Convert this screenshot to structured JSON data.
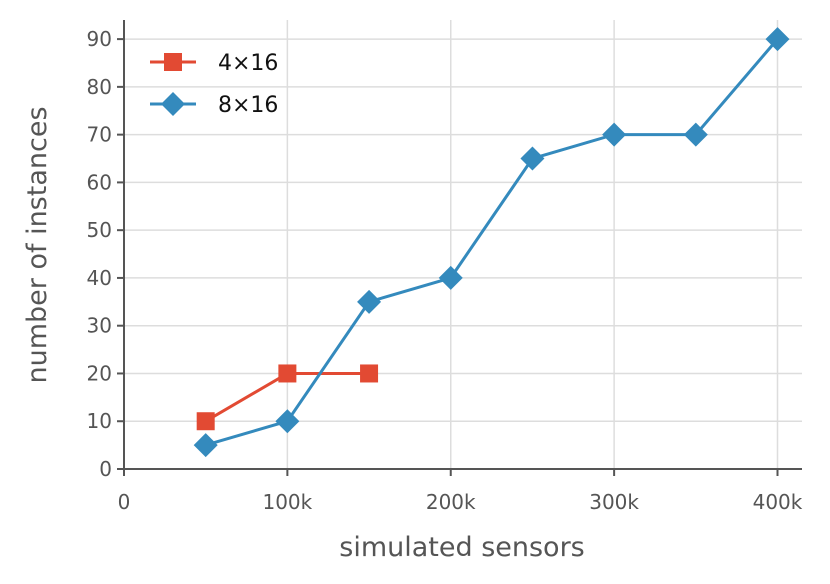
{
  "chart_data": {
    "type": "line",
    "xlabel": "simulated sensors",
    "ylabel": "number of instances",
    "xlim": [
      0,
      415000
    ],
    "ylim": [
      0,
      94
    ],
    "x_ticks": [
      {
        "value": 0,
        "label": "0"
      },
      {
        "value": 100000,
        "label": "100k"
      },
      {
        "value": 200000,
        "label": "200k"
      },
      {
        "value": 300000,
        "label": "300k"
      },
      {
        "value": 400000,
        "label": "400k"
      }
    ],
    "y_ticks": [
      {
        "value": 0,
        "label": "0"
      },
      {
        "value": 10,
        "label": "10"
      },
      {
        "value": 20,
        "label": "20"
      },
      {
        "value": 30,
        "label": "30"
      },
      {
        "value": 40,
        "label": "40"
      },
      {
        "value": 50,
        "label": "50"
      },
      {
        "value": 60,
        "label": "60"
      },
      {
        "value": 70,
        "label": "70"
      },
      {
        "value": 80,
        "label": "80"
      },
      {
        "value": 90,
        "label": "90"
      }
    ],
    "grid": true,
    "legend_position": "top-left",
    "series": [
      {
        "name": "4×16",
        "color": "#e24a33",
        "marker": "square",
        "x": [
          50000,
          100000,
          150000
        ],
        "y": [
          10,
          20,
          20
        ]
      },
      {
        "name": "8×16",
        "color": "#348abd",
        "marker": "diamond",
        "x": [
          50000,
          100000,
          150000,
          200000,
          250000,
          300000,
          350000,
          400000
        ],
        "y": [
          5,
          10,
          35,
          40,
          65,
          70,
          70,
          90
        ]
      }
    ]
  }
}
